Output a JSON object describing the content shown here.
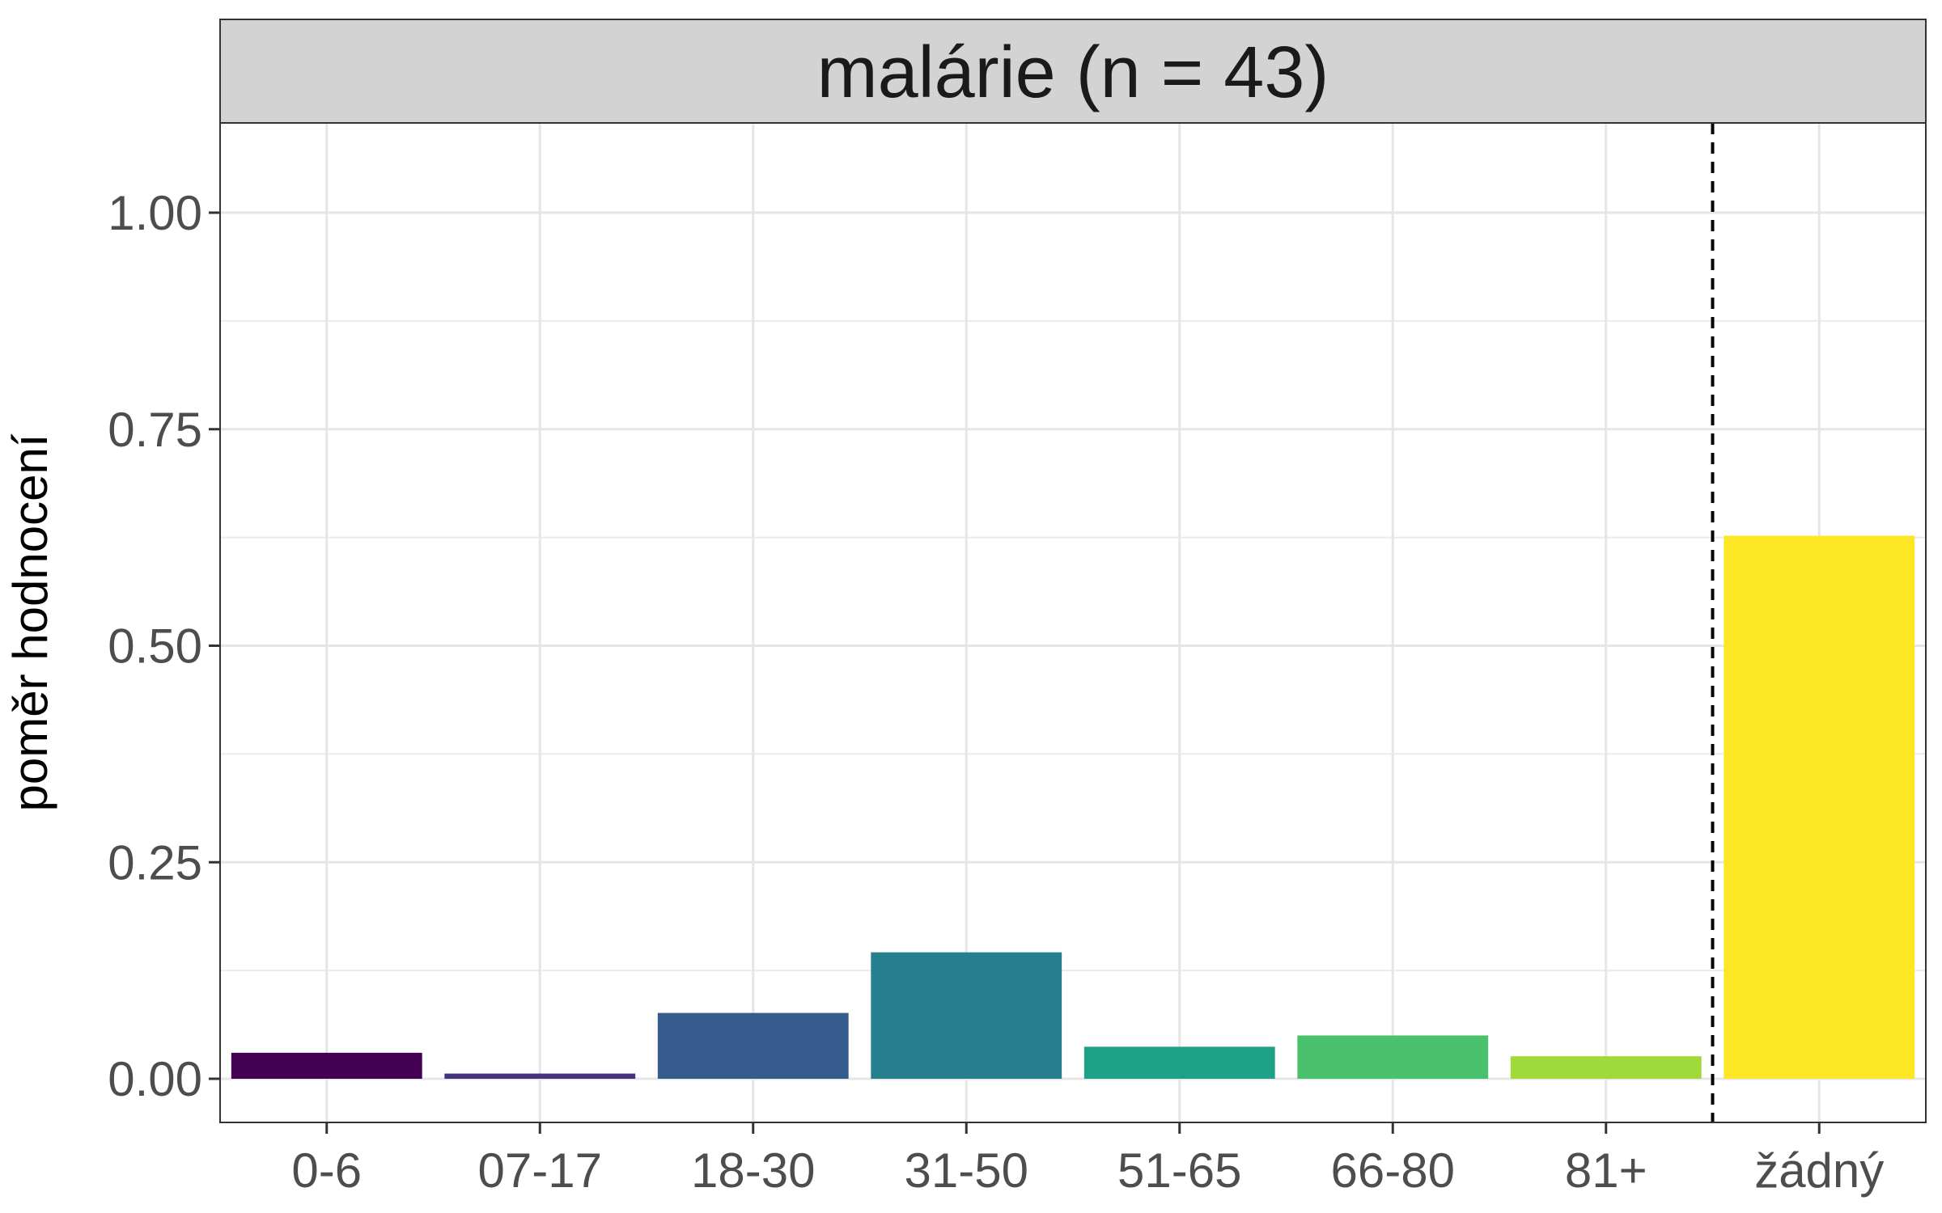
{
  "chart_data": {
    "type": "bar",
    "title": "malárie (n = 43)",
    "xlabel": "",
    "ylabel": "poměr hodnocení",
    "ylim": [
      -0.05,
      1.1
    ],
    "yticks": [
      "0.00",
      "0.25",
      "0.50",
      "0.75",
      "1.00"
    ],
    "categories": [
      "0-6",
      "07-17",
      "18-30",
      "31-50",
      "51-65",
      "66-80",
      "81+",
      "žádný"
    ],
    "values": [
      0.03,
      0.006,
      0.076,
      0.146,
      0.037,
      0.05,
      0.026,
      0.627
    ],
    "colors": [
      "#440154",
      "#46337E",
      "#365C8D",
      "#277F8E",
      "#1FA187",
      "#4AC16D",
      "#9FDA3A",
      "#FDE725"
    ],
    "separator_after_category": "81+",
    "grid": true,
    "legend": "none"
  }
}
